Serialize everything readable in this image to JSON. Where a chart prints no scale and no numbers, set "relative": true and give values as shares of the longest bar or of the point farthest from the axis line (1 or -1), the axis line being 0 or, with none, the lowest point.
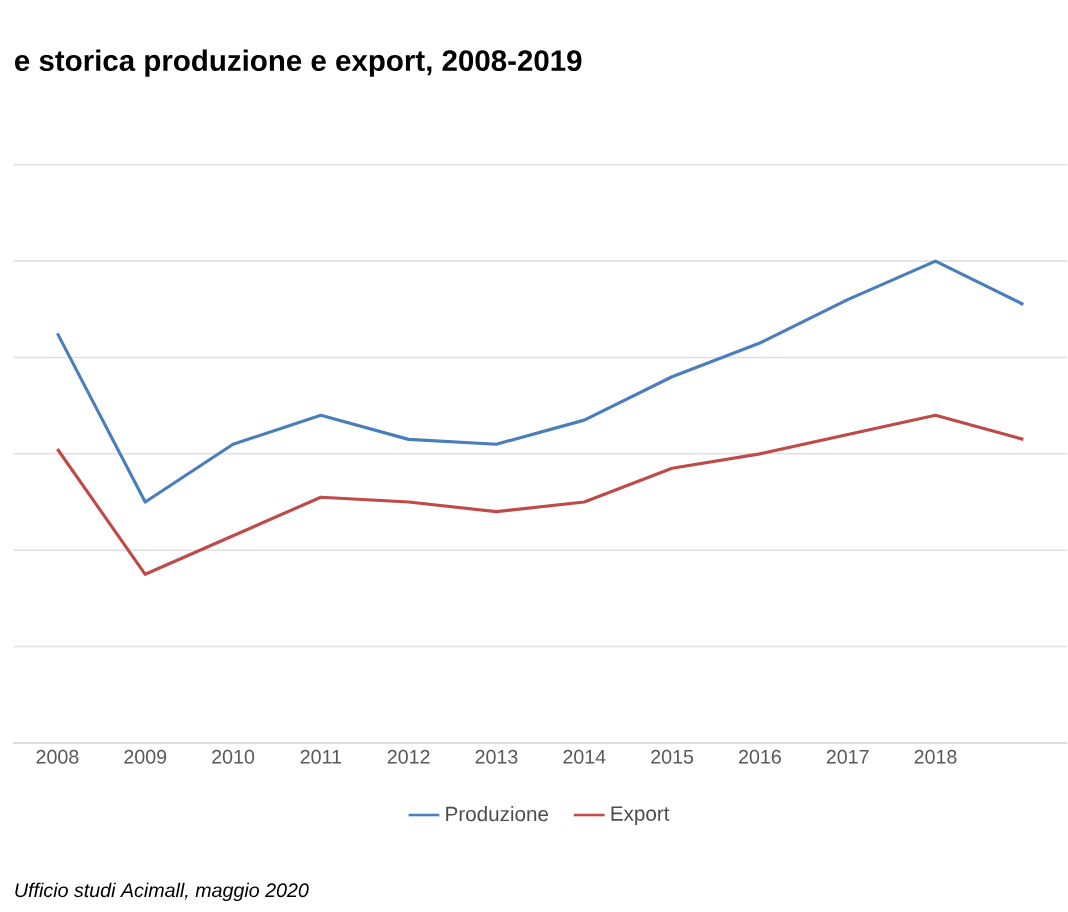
{
  "chart_data": {
    "type": "line",
    "title": "e storica produzione e export, 2008-2019",
    "categories": [
      "2008",
      "2009",
      "2010",
      "2011",
      "2012",
      "2013",
      "2014",
      "2015",
      "2016",
      "2017",
      "2018",
      null
    ],
    "relative": true,
    "series": [
      {
        "name": "Produzione",
        "color": "#4a7ebb",
        "values": [
          0.85,
          0.5,
          0.62,
          0.68,
          0.63,
          0.62,
          0.67,
          0.76,
          0.83,
          0.92,
          1,
          0.91
        ]
      },
      {
        "name": "Export",
        "color": "#be4b48",
        "values": [
          0.61,
          0.35,
          0.43,
          0.51,
          0.5,
          0.48,
          0.5,
          0.57,
          0.6,
          0.64,
          0.68,
          0.63
        ]
      }
    ],
    "grid": "y",
    "legend": "bottom",
    "annotations": [
      "Ufficio studi Acimall, maggio 2020"
    ]
  }
}
